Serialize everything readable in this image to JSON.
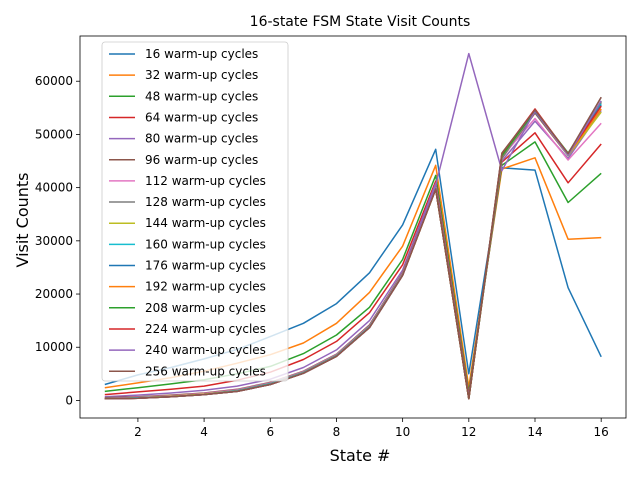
{
  "chart_data": {
    "type": "line",
    "title": "16-state FSM State Visit Counts",
    "xlabel": "State #",
    "ylabel": "Visit Counts",
    "xlim": [
      0.25,
      16.75
    ],
    "ylim": [
      -3300,
      68500
    ],
    "xticks": [
      2,
      4,
      6,
      8,
      10,
      12,
      14,
      16
    ],
    "yticks": [
      0,
      10000,
      20000,
      30000,
      40000,
      50000,
      60000
    ],
    "legend_position": "upper-left",
    "grid": false,
    "x": [
      1,
      2,
      3,
      4,
      5,
      6,
      7,
      8,
      9,
      10,
      11,
      12,
      13,
      14,
      15,
      16
    ],
    "series": [
      {
        "name": "16 warm-up cycles",
        "color": "#1f77b4",
        "values": [
          3000,
          4800,
          6200,
          7800,
          9600,
          12000,
          14500,
          18200,
          24000,
          33000,
          47200,
          5000,
          43700,
          43300,
          21200,
          8200
        ]
      },
      {
        "name": "32 warm-up cycles",
        "color": "#ff7f0e",
        "values": [
          2400,
          3300,
          4300,
          5500,
          7000,
          8600,
          10800,
          14500,
          20300,
          29000,
          44200,
          2500,
          43500,
          45600,
          30300,
          30600
        ]
      },
      {
        "name": "48 warm-up cycles",
        "color": "#2ca02c",
        "values": [
          1700,
          2400,
          3100,
          3900,
          5000,
          6400,
          8800,
          12300,
          17500,
          26500,
          42300,
          1500,
          44200,
          48600,
          37200,
          42700
        ]
      },
      {
        "name": "64 warm-up cycles",
        "color": "#d62728",
        "values": [
          1100,
          1600,
          2100,
          2700,
          3800,
          5300,
          7700,
          11100,
          16500,
          25500,
          41200,
          1000,
          44800,
          50300,
          40900,
          48200
        ]
      },
      {
        "name": "80 warm-up cycles",
        "color": "#9467bd",
        "values": [
          700,
          1000,
          1400,
          1900,
          2700,
          4000,
          6200,
          9500,
          15000,
          24500,
          40800,
          800,
          45000,
          52500,
          45500,
          54500
        ]
      },
      {
        "name": "96 warm-up cycles",
        "color": "#8c564b",
        "values": [
          500,
          700,
          1000,
          1400,
          2100,
          3400,
          5500,
          8700,
          14200,
          24000,
          40200,
          500,
          45500,
          54000,
          46000,
          56000
        ]
      },
      {
        "name": "112 warm-up cycles",
        "color": "#e377c2",
        "values": [
          400,
          600,
          900,
          1300,
          2000,
          3300,
          5400,
          8600,
          14000,
          23800,
          40000,
          400,
          45800,
          53000,
          45200,
          52100
        ]
      },
      {
        "name": "128 warm-up cycles",
        "color": "#7f7f7f",
        "values": [
          400,
          500,
          800,
          1200,
          1900,
          3200,
          5300,
          8500,
          13900,
          23700,
          39900,
          400,
          45600,
          54200,
          46300,
          57000
        ]
      },
      {
        "name": "144 warm-up cycles",
        "color": "#bcbd22",
        "values": [
          300,
          500,
          800,
          1200,
          1800,
          3100,
          5200,
          8400,
          13800,
          23600,
          39800,
          300,
          46000,
          54400,
          46000,
          54200
        ]
      },
      {
        "name": "160 warm-up cycles",
        "color": "#17becf",
        "values": [
          300,
          500,
          700,
          1100,
          1800,
          3100,
          5200,
          8400,
          13800,
          23600,
          39800,
          300,
          46200,
          54600,
          46100,
          55800
        ]
      },
      {
        "name": "176 warm-up cycles",
        "color": "#1f77b4",
        "values": [
          300,
          400,
          700,
          1100,
          1700,
          3000,
          5100,
          8300,
          13700,
          23500,
          39700,
          300,
          46300,
          54300,
          46400,
          55500
        ]
      },
      {
        "name": "192 warm-up cycles",
        "color": "#ff7f0e",
        "values": [
          300,
          400,
          700,
          1100,
          1700,
          3000,
          5100,
          8300,
          13700,
          23500,
          39700,
          300,
          46100,
          54700,
          46200,
          54800
        ]
      },
      {
        "name": "208 warm-up cycles",
        "color": "#2ca02c",
        "values": [
          300,
          400,
          700,
          1100,
          1700,
          3000,
          5100,
          8300,
          13700,
          23500,
          39700,
          300,
          46000,
          54500,
          46500,
          56200
        ]
      },
      {
        "name": "224 warm-up cycles",
        "color": "#d62728",
        "values": [
          300,
          400,
          700,
          1100,
          1700,
          3000,
          5100,
          8300,
          13700,
          23500,
          39700,
          300,
          46400,
          54800,
          46300,
          55300
        ]
      },
      {
        "name": "240 warm-up cycles",
        "color": "#9467bd",
        "values": [
          300,
          400,
          700,
          1100,
          1700,
          3000,
          5100,
          8300,
          13700,
          23500,
          40500,
          65200,
          43200,
          54400,
          46100,
          56300
        ]
      },
      {
        "name": "256 warm-up cycles",
        "color": "#8c564b",
        "values": [
          300,
          400,
          700,
          1100,
          1700,
          3000,
          5100,
          8300,
          13700,
          23500,
          39700,
          300,
          46500,
          54600,
          46400,
          57000
        ]
      }
    ]
  }
}
